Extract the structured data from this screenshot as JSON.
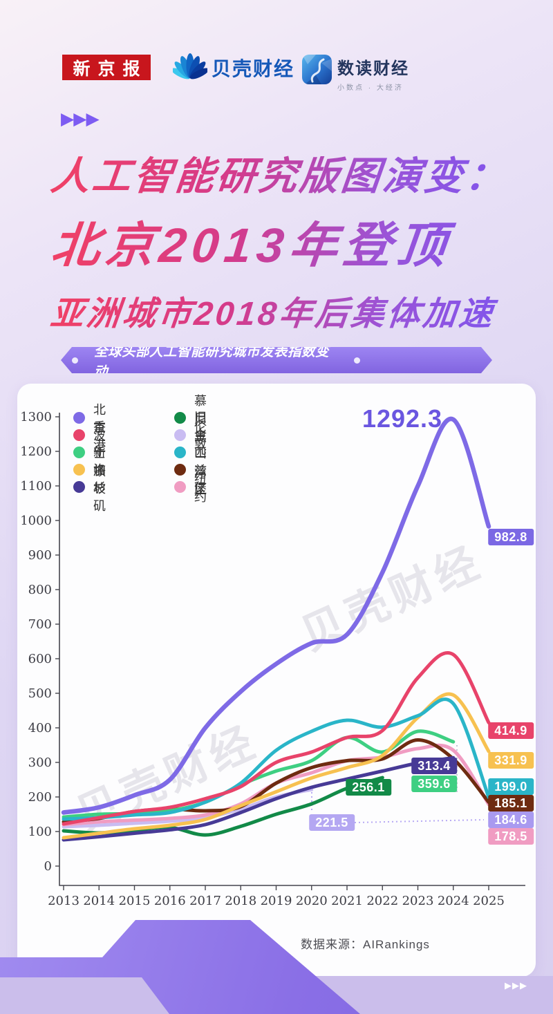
{
  "header": {
    "logo_xjb": "新京报",
    "logo_bkcj": "贝壳财经",
    "logo_sdcj": "数读财经",
    "logo_sdcj_sub": "小数点 · 大经济"
  },
  "title": {
    "line1": "人工智能研究版图演变：",
    "line2": "北京2013年登顶",
    "line3": "亚洲城市2018年后集体加速"
  },
  "banner": {
    "text": "全球头部人工智能研究城市发表指数变动"
  },
  "watermark": {
    "text": "贝壳财经"
  },
  "chart_data": {
    "type": "line",
    "title": "全球头部人工智能研究城市发表指数变动",
    "x": [
      2013,
      2014,
      2015,
      2016,
      2017,
      2018,
      2019,
      2020,
      2021,
      2022,
      2023,
      2024,
      2025
    ],
    "ylim": [
      0,
      1300
    ],
    "ytick_step": 100,
    "grid": false,
    "legend_position": "top-left",
    "series": [
      {
        "id": "beijing",
        "name": "北京",
        "color": "#7e6ae6",
        "values": [
          155,
          170,
          205,
          250,
          400,
          505,
          585,
          645,
          670,
          850,
          1100,
          1292.3,
          982.8
        ]
      },
      {
        "id": "hongkong",
        "name": "香港",
        "color": "#e8436a",
        "values": [
          122,
          140,
          158,
          170,
          195,
          230,
          300,
          330,
          372,
          392,
          545,
          612,
          414.9
        ]
      },
      {
        "id": "boston",
        "name": "波士顿",
        "color": "#3ecf82",
        "values": [
          142,
          150,
          152,
          160,
          185,
          235,
          275,
          305,
          372,
          330,
          390,
          359.6,
          null
        ]
      },
      {
        "id": "singapore",
        "name": "新加坡",
        "color": "#f7c150",
        "values": [
          82,
          95,
          108,
          118,
          135,
          175,
          215,
          255,
          285,
          320,
          430,
          495,
          331.9
        ]
      },
      {
        "id": "losangeles",
        "name": "洛杉矶",
        "color": "#473a96",
        "values": [
          76,
          85,
          95,
          105,
          120,
          155,
          195,
          228,
          252,
          275,
          298,
          313.4,
          null
        ]
      },
      {
        "id": "munich",
        "name": "慕尼黑",
        "color": "#128a48",
        "values": [
          102,
          96,
          104,
          112,
          90,
          115,
          150,
          180,
          225,
          256.1,
          null,
          null,
          null
        ]
      },
      {
        "id": "london",
        "name": "伦敦",
        "color": "#c9bcf2",
        "values": [
          114,
          118,
          124,
          130,
          140,
          165,
          200,
          221.5,
          null,
          null,
          null,
          null,
          184.6
        ]
      },
      {
        "id": "sfbay",
        "name": "旧金山湾区",
        "color": "#2ab5c8",
        "values": [
          136,
          140,
          148,
          155,
          185,
          240,
          335,
          390,
          422,
          402,
          435,
          470,
          199.0
        ]
      },
      {
        "id": "pittsburgh",
        "name": "匹兹堡",
        "color": "#6e2b10",
        "values": [
          128,
          138,
          158,
          165,
          160,
          172,
          240,
          285,
          305,
          310,
          365,
          310,
          185.1
        ]
      },
      {
        "id": "newyork",
        "name": "纽约",
        "color": "#f09cc2",
        "values": [
          120,
          128,
          133,
          138,
          148,
          180,
          240,
          270,
          305,
          315,
          340,
          335,
          178.5
        ]
      }
    ]
  },
  "annotations": {
    "beijing_peak": {
      "text": "1292.3",
      "fg": "#6a56e0"
    },
    "beijing_end": {
      "text": "982.8",
      "bg": "#7b68e4"
    },
    "hk_end": {
      "text": "414.9",
      "bg": "#e8436a"
    },
    "sg_end": {
      "text": "331.9",
      "bg": "#f7c150"
    },
    "sf_end": {
      "text": "199.0",
      "bg": "#2ab5c8"
    },
    "pit_end": {
      "text": "185.1",
      "bg": "#6e2b10"
    },
    "ldn_end": {
      "text": "184.6",
      "bg": "#a99af0"
    },
    "ny_end": {
      "text": "178.5",
      "bg": "#f09cc2"
    },
    "la_mid": {
      "text": "313.4",
      "bg": "#473a96"
    },
    "bos_mid": {
      "text": "359.6",
      "bg": "#3ecf82"
    },
    "mun_mid": {
      "text": "256.1",
      "bg": "#128a48"
    },
    "ldn_mid": {
      "text": "221.5",
      "bg": "#b4a7f2"
    }
  },
  "source": {
    "text": "数据来源：AIRankings"
  }
}
